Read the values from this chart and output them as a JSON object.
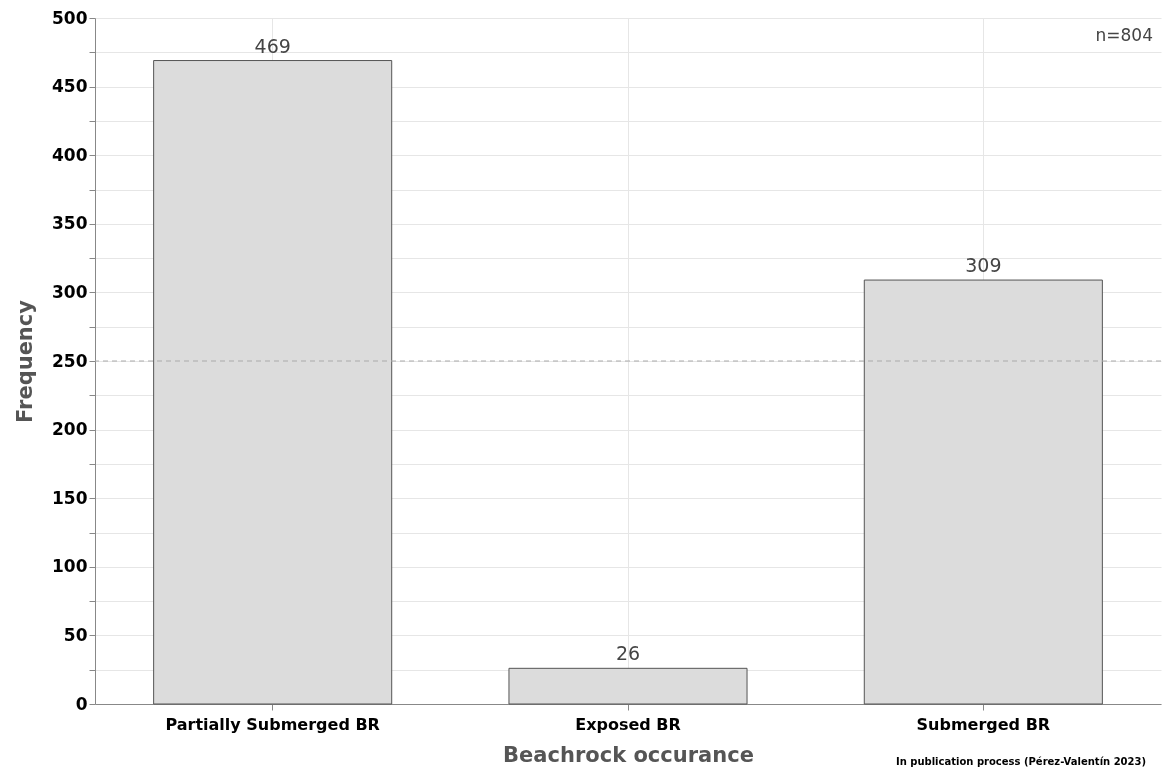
{
  "chart_data": {
    "type": "bar",
    "xlabel": "Beachrock occurance",
    "ylabel": "Frequency",
    "categories": [
      "Partially Submerged BR",
      "Exposed BR",
      "Submerged BR"
    ],
    "values": [
      469,
      26,
      309
    ],
    "color": "#dcdcdc",
    "data_labels": true,
    "ylim": [
      0,
      500
    ],
    "yticks": [
      0,
      {
        "value": 25,
        "label": null
      },
      50,
      {
        "value": 75,
        "label": null
      },
      100,
      {
        "value": 125,
        "label": null
      },
      150,
      {
        "value": 175,
        "label": null
      },
      200,
      {
        "value": 225,
        "label": null
      },
      250,
      {
        "value": 275,
        "label": null
      },
      300,
      {
        "value": 325,
        "label": null
      },
      350,
      {
        "value": 375,
        "label": null
      },
      400,
      {
        "value": 425,
        "label": null
      },
      450,
      {
        "value": 475,
        "label": null
      },
      500
    ],
    "grid": true,
    "ref_lines": [
      {
        "axis": "y",
        "value": 250,
        "line_style": "dashed",
        "color": "#aaaaaa"
      }
    ],
    "annotations": [
      "n=804",
      "In publication process (Pérez-Valentín 2023)"
    ]
  }
}
